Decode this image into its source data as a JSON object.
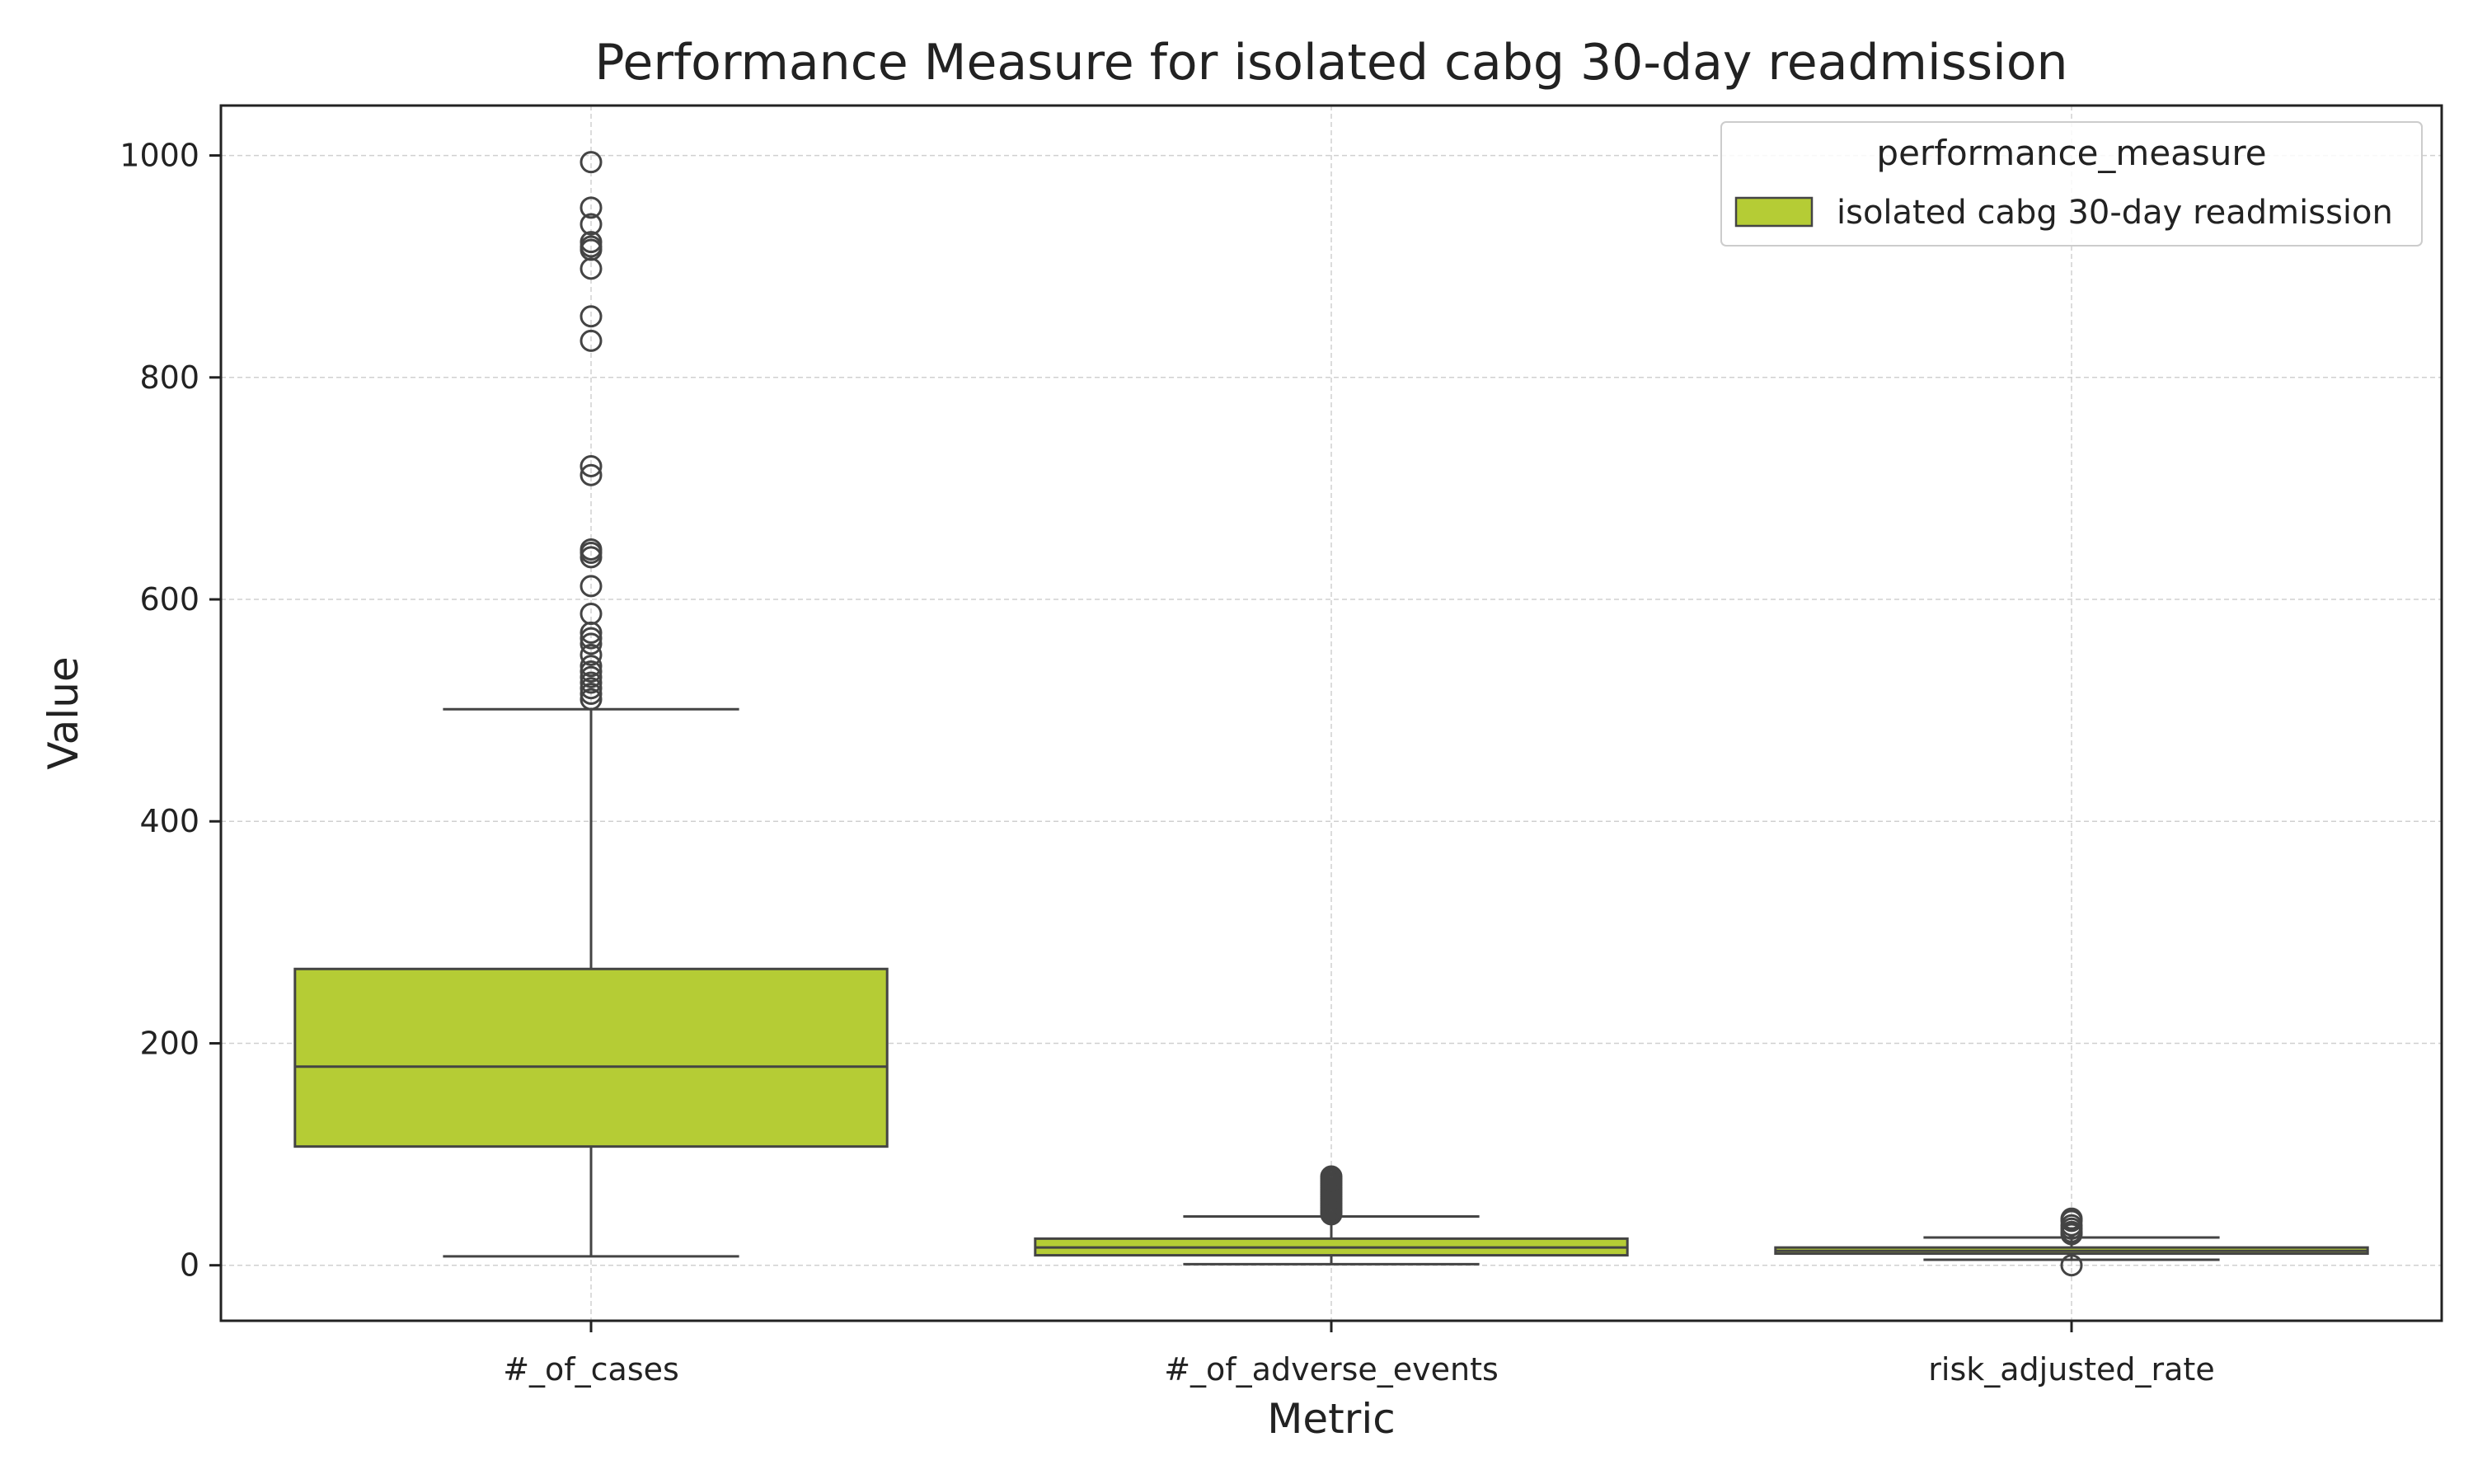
{
  "chart_data": {
    "type": "box",
    "title": "Performance Measure for isolated cabg 30-day readmission",
    "xlabel": "Metric",
    "ylabel": "Value",
    "ylim": [
      -50,
      1045
    ],
    "yticks": [
      0,
      200,
      400,
      600,
      800,
      1000
    ],
    "grid": true,
    "legend": {
      "title": "performance_measure",
      "placement": "top-right",
      "entries": [
        "isolated cabg 30-day readmission"
      ]
    },
    "box_color": "#b5cc35",
    "edge_color": "#444444",
    "categories": [
      "#_of_cases",
      "#_of_adverse_events",
      "risk_adjusted_rate"
    ],
    "series": [
      {
        "name": "isolated cabg 30-day readmission",
        "boxes": [
          {
            "category": "#_of_cases",
            "whisker_low": 8,
            "q1": 107,
            "median": 179,
            "q3": 267,
            "whisker_high": 501,
            "outliers": [
              510,
              515,
              520,
              525,
              530,
              535,
              540,
              550,
              560,
              565,
              570,
              587,
              612,
              638,
              642,
              645,
              712,
              720,
              833,
              855,
              898,
              915,
              918,
              922,
              938,
              953,
              994
            ]
          },
          {
            "category": "#_of_adverse_events",
            "whisker_low": 1,
            "q1": 9,
            "median": 16,
            "q3": 24,
            "whisker_high": 44,
            "outliers": [
              46,
              48,
              50,
              52,
              54,
              56,
              58,
              60,
              62,
              64,
              66,
              68,
              70,
              72,
              74,
              76,
              78,
              80
            ]
          },
          {
            "category": "risk_adjusted_rate",
            "whisker_low": 5,
            "q1": 10.5,
            "median": 13,
            "q3": 16,
            "whisker_high": 25,
            "outliers": [
              0,
              28,
              30,
              33,
              36,
              40,
              42
            ]
          }
        ]
      }
    ]
  }
}
